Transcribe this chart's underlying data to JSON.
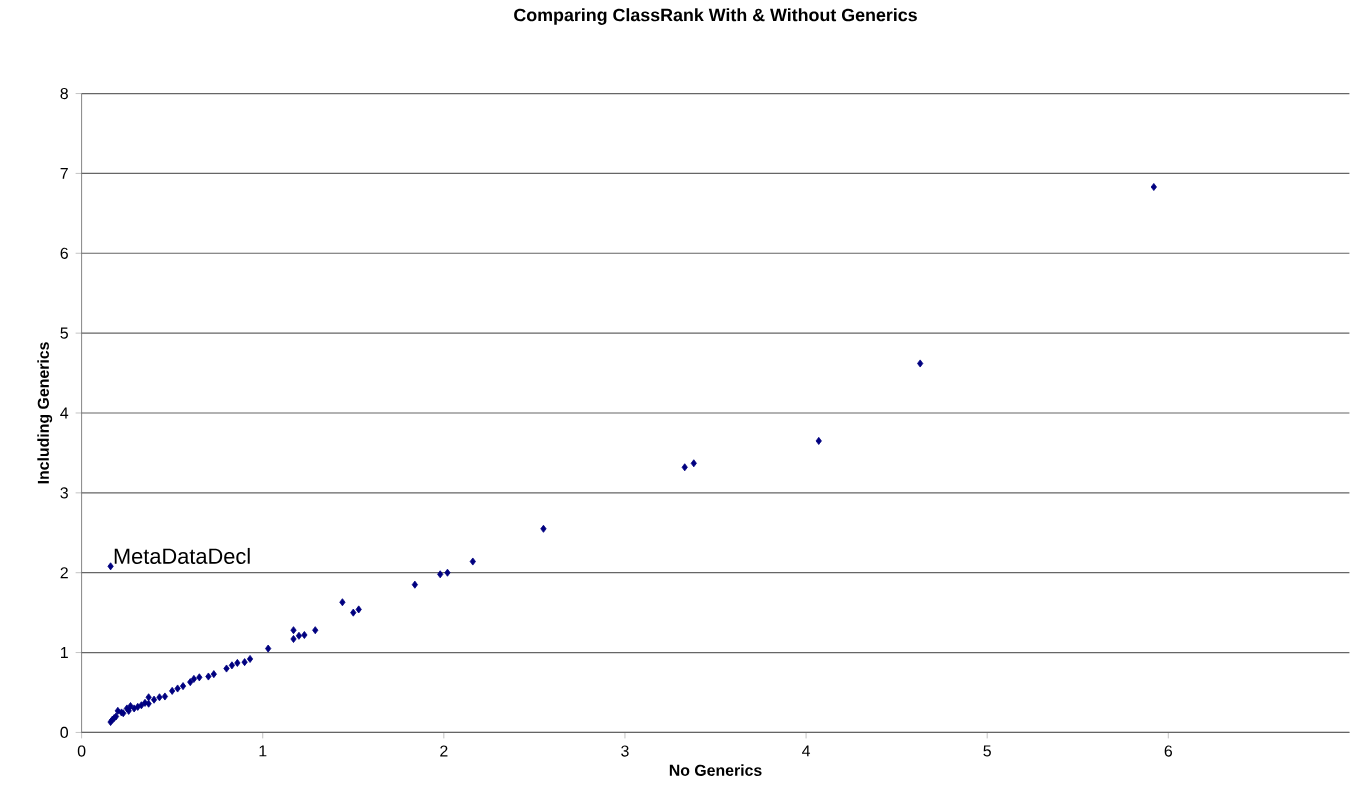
{
  "chart_data": {
    "type": "scatter",
    "title": "Comparing ClassRank With & Without Generics",
    "xlabel": "No Generics",
    "ylabel": "Including Generics",
    "xlim": [
      0,
      7
    ],
    "ylim": [
      0,
      8
    ],
    "xticks": [
      0,
      1,
      2,
      3,
      4,
      5,
      6
    ],
    "yticks": [
      0,
      1,
      2,
      3,
      4,
      5,
      6,
      7,
      8
    ],
    "grid": "y",
    "marker": "diamond",
    "annotations": [
      {
        "text": "MetaDataDecl",
        "x": 0.16,
        "y": 2.08
      }
    ],
    "series": [
      {
        "color": "#000080",
        "x": [
          0.16,
          0.17,
          0.18,
          0.19,
          0.2,
          0.22,
          0.23,
          0.25,
          0.26,
          0.27,
          0.29,
          0.31,
          0.33,
          0.35,
          0.37,
          0.37,
          0.4,
          0.43,
          0.46,
          0.5,
          0.53,
          0.56,
          0.6,
          0.62,
          0.65,
          0.7,
          0.73,
          0.8,
          0.83,
          0.86,
          0.9,
          0.93,
          1.03,
          1.17,
          1.17,
          1.2,
          1.23,
          1.29,
          1.44,
          1.5,
          1.53,
          1.84,
          1.98,
          2.02,
          2.16,
          2.55,
          3.33,
          3.38,
          4.07,
          4.63,
          5.92,
          0.16
        ],
        "values": [
          0.13,
          0.16,
          0.18,
          0.2,
          0.27,
          0.25,
          0.24,
          0.3,
          0.27,
          0.33,
          0.3,
          0.32,
          0.34,
          0.37,
          0.36,
          0.44,
          0.41,
          0.44,
          0.45,
          0.52,
          0.55,
          0.58,
          0.63,
          0.67,
          0.69,
          0.7,
          0.73,
          0.8,
          0.84,
          0.87,
          0.88,
          0.92,
          1.05,
          1.17,
          1.28,
          1.21,
          1.22,
          1.28,
          1.63,
          1.5,
          1.54,
          1.85,
          1.98,
          2.0,
          2.14,
          2.55,
          3.32,
          3.37,
          3.65,
          4.62,
          6.83,
          2.08
        ]
      }
    ]
  }
}
